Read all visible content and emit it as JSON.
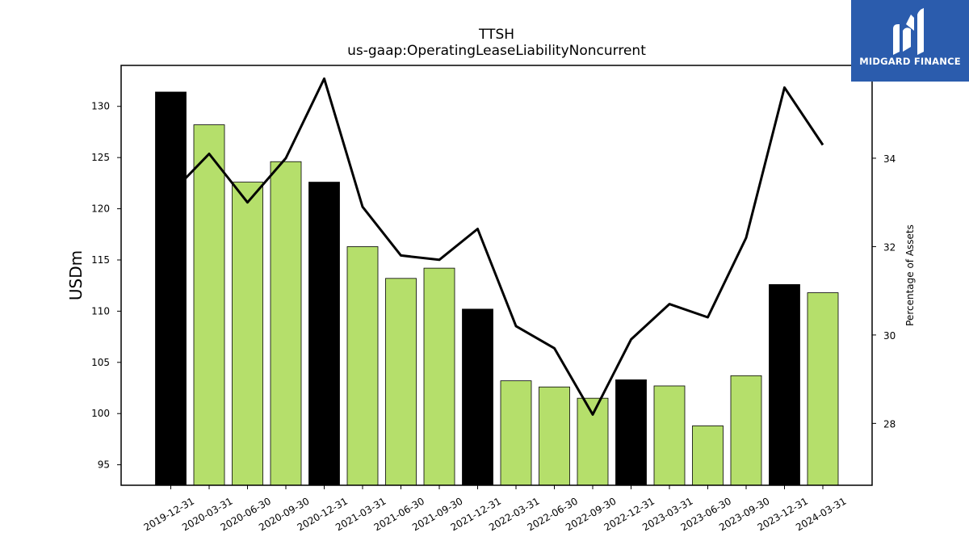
{
  "chart_data": {
    "type": "bar+line",
    "title": "TTSH",
    "subtitle": "us-gaap:OperatingLeaseLiabilityNoncurrent",
    "ylabel": "USDm",
    "y2label": "Percentage of Assets",
    "ylim": [
      93,
      134
    ],
    "y2lim": [
      26.6,
      36.1
    ],
    "yticks": [
      "95",
      "100",
      "105",
      "110",
      "115",
      "120",
      "125",
      "130"
    ],
    "y2ticks": [
      "28",
      "30",
      "32",
      "34"
    ],
    "categories": [
      "2019-12-31",
      "2020-03-31",
      "2020-06-30",
      "2020-09-30",
      "2020-12-31",
      "2021-03-31",
      "2021-06-30",
      "2021-09-30",
      "2021-12-31",
      "2022-03-31",
      "2022-06-30",
      "2022-09-30",
      "2022-12-31",
      "2023-03-31",
      "2023-06-30",
      "2023-09-30",
      "2023-12-31",
      "2024-03-31"
    ],
    "series": [
      {
        "type": "bar",
        "axis": "left",
        "values": [
          131.4,
          128.2,
          122.6,
          124.6,
          122.6,
          116.3,
          113.2,
          114.2,
          110.2,
          103.2,
          102.6,
          101.5,
          103.3,
          102.7,
          98.8,
          103.7,
          112.6,
          111.8
        ],
        "colors": [
          "#000000",
          "#b5df6b",
          "#b5df6b",
          "#b5df6b",
          "#000000",
          "#b5df6b",
          "#b5df6b",
          "#b5df6b",
          "#000000",
          "#b5df6b",
          "#b5df6b",
          "#b5df6b",
          "#000000",
          "#b5df6b",
          "#b5df6b",
          "#b5df6b",
          "#000000",
          "#b5df6b"
        ]
      },
      {
        "type": "line",
        "axis": "right",
        "values": [
          33.2,
          34.1,
          33.0,
          34.0,
          35.8,
          32.9,
          31.8,
          31.7,
          32.4,
          30.2,
          29.7,
          28.2,
          29.9,
          30.7,
          30.4,
          32.2,
          35.6,
          34.3
        ],
        "color": "#000000"
      }
    ]
  },
  "logo": {
    "text": "MIDGARD FINANCE",
    "bg_color": "#2b5cad"
  }
}
